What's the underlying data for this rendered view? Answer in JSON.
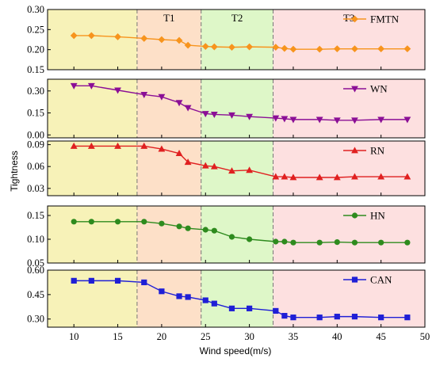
{
  "chart_data": {
    "type": "line",
    "xlabel": "Wind speed(m/s)",
    "ylabel": "Tightness",
    "xlim": [
      7,
      50
    ],
    "xticks": [
      10,
      15,
      20,
      25,
      30,
      35,
      40,
      45,
      50
    ],
    "regions": {
      "boundaries": [
        17.2,
        24.5,
        32.7
      ],
      "labels": [
        "",
        "T1",
        "T2",
        "T3"
      ],
      "colors": [
        "#f7f2b8",
        "#fde0c8",
        "#def7c8",
        "#fde0e0"
      ]
    },
    "grid": false,
    "legend_position": "top-right",
    "x": [
      10,
      12,
      15,
      18,
      20,
      22,
      23,
      25,
      26,
      28,
      30,
      33,
      34,
      35,
      38,
      40,
      42,
      45,
      48
    ],
    "panels": [
      {
        "name": "FMTN",
        "color": "#f7941d",
        "marker": "diamond",
        "ylim": [
          0.15,
          0.3
        ],
        "yticks": [
          "0.15",
          "0.20",
          "0.25",
          "0.30"
        ],
        "values": [
          0.235,
          0.235,
          0.232,
          0.228,
          0.225,
          0.223,
          0.211,
          0.208,
          0.207,
          0.206,
          0.207,
          0.206,
          0.203,
          0.201,
          0.201,
          0.202,
          0.202,
          0.202,
          0.202
        ]
      },
      {
        "name": "WN",
        "color": "#8b0f96",
        "marker": "triangle-down",
        "ylim": [
          -0.02,
          0.38
        ],
        "yticks": [
          "0.00",
          "0.15",
          "0.30"
        ],
        "values": [
          0.335,
          0.335,
          0.305,
          0.275,
          0.26,
          0.22,
          0.185,
          0.145,
          0.14,
          0.135,
          0.125,
          0.115,
          0.11,
          0.105,
          0.105,
          0.1,
          0.1,
          0.105,
          0.105
        ]
      },
      {
        "name": "RN",
        "color": "#e02020",
        "marker": "triangle-up",
        "ylim": [
          0.02,
          0.095
        ],
        "yticks": [
          "0.03",
          "0.06",
          "0.09"
        ],
        "values": [
          0.088,
          0.088,
          0.088,
          0.088,
          0.084,
          0.078,
          0.066,
          0.061,
          0.06,
          0.054,
          0.055,
          0.046,
          0.046,
          0.045,
          0.045,
          0.045,
          0.046,
          0.046,
          0.046
        ]
      },
      {
        "name": "HN",
        "color": "#2e8b1e",
        "marker": "circle",
        "ylim": [
          0.05,
          0.17
        ],
        "yticks": [
          "0.05",
          "0.10",
          "0.15"
        ],
        "values": [
          0.137,
          0.137,
          0.137,
          0.137,
          0.133,
          0.127,
          0.123,
          0.12,
          0.118,
          0.105,
          0.1,
          0.095,
          0.095,
          0.093,
          0.093,
          0.094,
          0.093,
          0.093,
          0.093
        ]
      },
      {
        "name": "CAN",
        "color": "#1f1fd6",
        "marker": "square",
        "ylim": [
          0.25,
          0.6
        ],
        "yticks": [
          "0.30",
          "0.45",
          "0.60"
        ],
        "values": [
          0.535,
          0.535,
          0.535,
          0.525,
          0.47,
          0.44,
          0.435,
          0.415,
          0.395,
          0.365,
          0.365,
          0.35,
          0.32,
          0.31,
          0.31,
          0.315,
          0.315,
          0.31,
          0.31
        ]
      }
    ]
  }
}
